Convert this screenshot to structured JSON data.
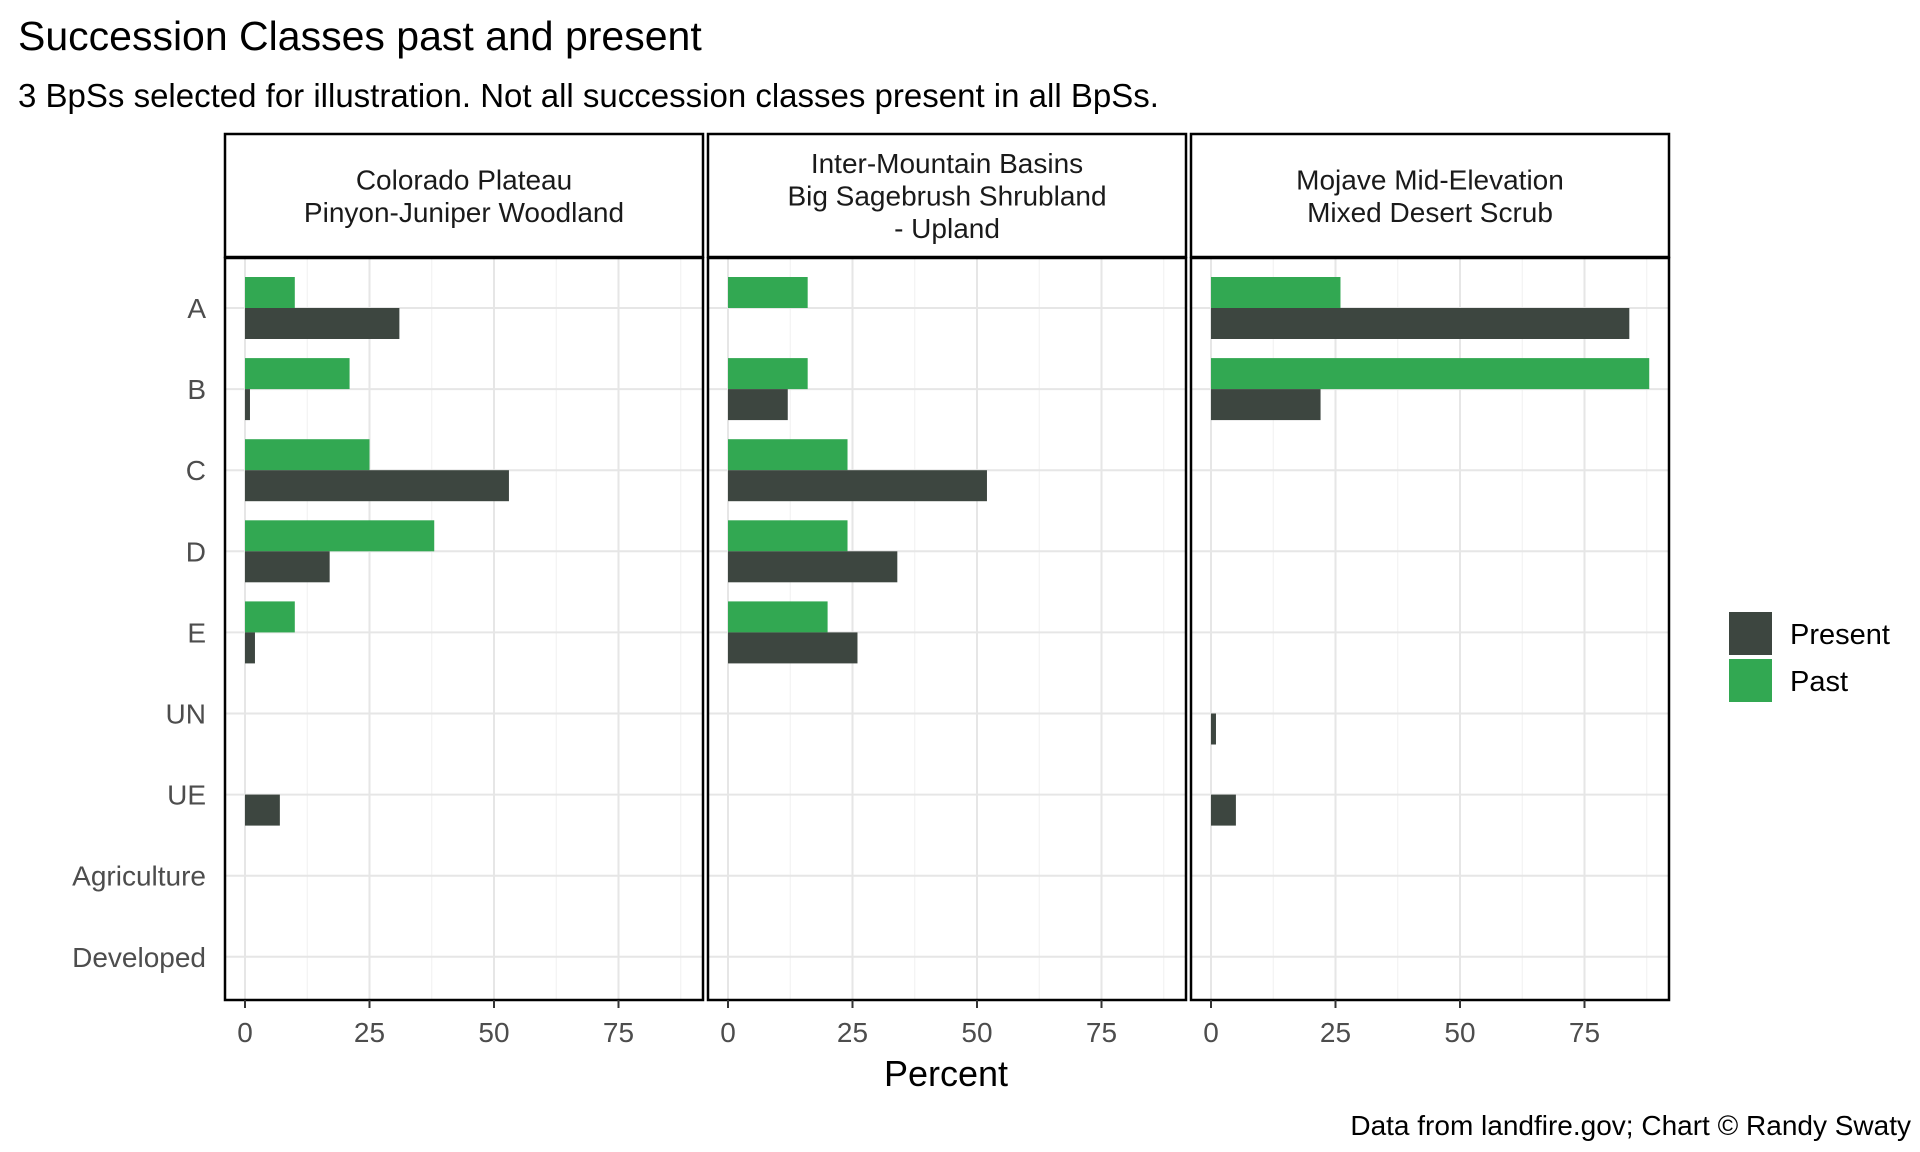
{
  "chart_data": {
    "type": "bar",
    "orientation": "horizontal",
    "title": "Succession Classes past and present",
    "subtitle": "3 BpSs selected for illustration. Not all succession classes present in all BpSs.",
    "xlabel": "Percent",
    "ylabel": "",
    "caption": "Data from landfire.gov; Chart © Randy Swaty",
    "xlim": [
      0,
      92
    ],
    "xticks": [
      0,
      25,
      50,
      75
    ],
    "xtick_labels": [
      "0",
      "25",
      "50",
      "75"
    ],
    "grid": true,
    "legend_position": "right",
    "categories": [
      "A",
      "B",
      "C",
      "D",
      "E",
      "UN",
      "UE",
      "Agriculture",
      "Developed"
    ],
    "series_names": [
      "Present",
      "Past"
    ],
    "colors": {
      "Present": "#3d4640",
      "Past": "#32a852"
    },
    "panels": [
      {
        "strip_lines": [
          "Colorado Plateau",
          "Pinyon-Juniper Woodland"
        ],
        "series": [
          {
            "name": "Present",
            "values": [
              31,
              1,
              53,
              17,
              2,
              0,
              7,
              0,
              0
            ]
          },
          {
            "name": "Past",
            "values": [
              10,
              21,
              25,
              38,
              10,
              0,
              0,
              0,
              0
            ]
          }
        ]
      },
      {
        "strip_lines": [
          "Inter-Mountain Basins",
          "Big Sagebrush Shrubland",
          "- Upland"
        ],
        "series": [
          {
            "name": "Present",
            "values": [
              0,
              12,
              52,
              34,
              26,
              0,
              0,
              0,
              0
            ]
          },
          {
            "name": "Past",
            "values": [
              16,
              16,
              24,
              24,
              20,
              0,
              0,
              0,
              0
            ]
          }
        ]
      },
      {
        "strip_lines": [
          "Mojave Mid-Elevation",
          "Mixed Desert Scrub"
        ],
        "series": [
          {
            "name": "Present",
            "values": [
              84,
              22,
              0,
              0,
              0,
              1,
              5,
              0,
              0
            ]
          },
          {
            "name": "Past",
            "values": [
              26,
              88,
              0,
              0,
              0,
              0,
              0,
              0,
              0
            ]
          }
        ]
      }
    ]
  }
}
